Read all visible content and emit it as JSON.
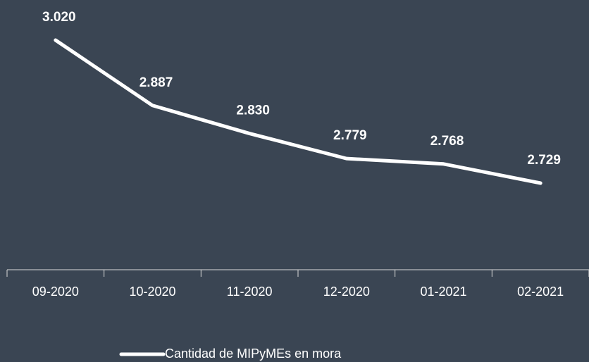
{
  "chart_data": {
    "type": "line",
    "categories": [
      "09-2020",
      "10-2020",
      "11-2020",
      "12-2020",
      "01-2021",
      "02-2021"
    ],
    "series": [
      {
        "name": "Cantidad de MIPyMEs en mora",
        "color": "#ffffff",
        "values": [
          3020,
          2887,
          2830,
          2779,
          2768,
          2729
        ],
        "value_labels": [
          "3.020",
          "2.887",
          "2.830",
          "2.779",
          "2.768",
          "2.729"
        ]
      }
    ],
    "legend": "bottom"
  }
}
